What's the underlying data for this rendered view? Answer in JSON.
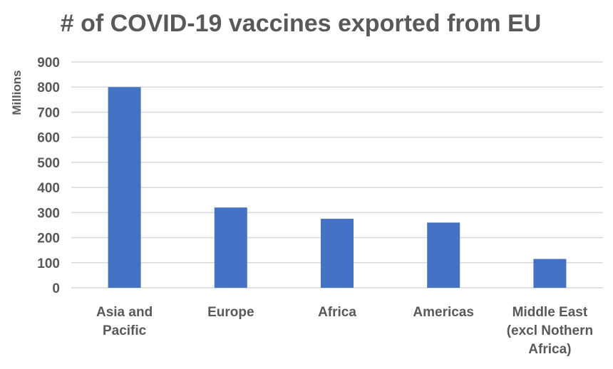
{
  "chart_data": {
    "type": "bar",
    "title": "# of COVID-19 vaccines exported from EU",
    "xlabel": "",
    "ylabel": "Millions",
    "categories": [
      [
        "Asia and",
        "Pacific"
      ],
      [
        "Europe"
      ],
      [
        "Africa"
      ],
      [
        "Americas"
      ],
      [
        "Middle East",
        "(excl Nothern",
        "Africa)"
      ]
    ],
    "values": [
      800,
      320,
      275,
      260,
      115
    ],
    "ylim": [
      0,
      900
    ],
    "yticks": [
      0,
      100,
      200,
      300,
      400,
      500,
      600,
      700,
      800,
      900
    ],
    "grid": true,
    "legend": "none",
    "colors": {
      "bar": "#4472C4",
      "grid": "#D9D9D9",
      "text": "#595959"
    }
  }
}
